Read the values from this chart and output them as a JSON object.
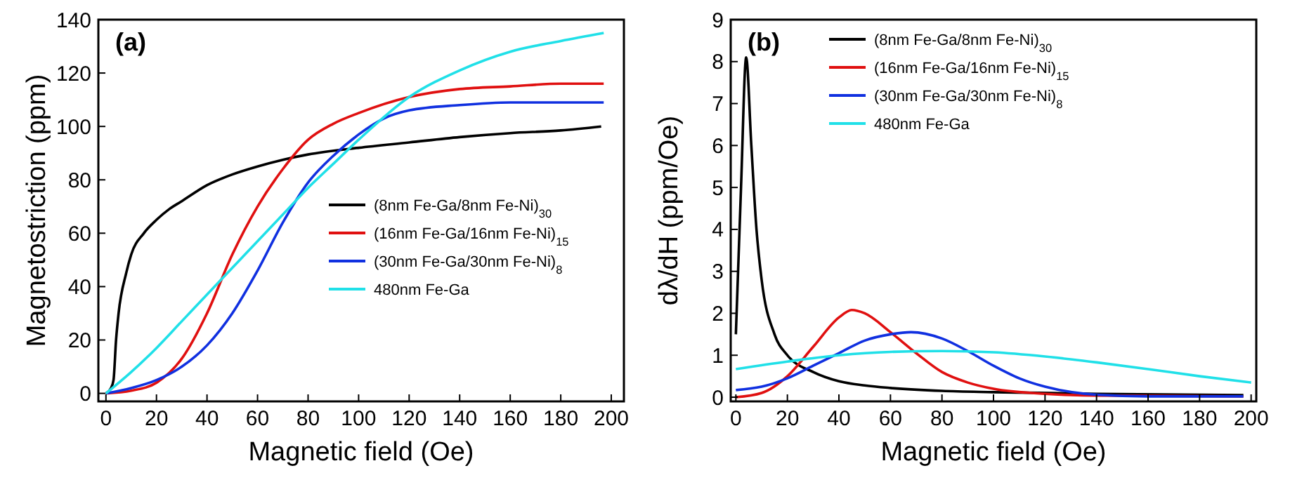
{
  "chart_data": [
    {
      "type": "line",
      "title": "(a)",
      "xlabel": "Magnetic field (Oe)",
      "ylabel": "Magnetostriction (ppm)",
      "xlim": [
        -3,
        205
      ],
      "ylim": [
        -3,
        140
      ],
      "xticks": [
        0,
        20,
        40,
        60,
        80,
        100,
        120,
        140,
        160,
        180,
        200
      ],
      "yticks": [
        0,
        20,
        40,
        60,
        80,
        100,
        120,
        140
      ],
      "legend": "bottom right",
      "grid": false,
      "series": [
        {
          "name": "(8nm Fe-Ga/8nm Fe-Ni)$_{30}$",
          "color": "#000000",
          "x": [
            0,
            2,
            3,
            4,
            5,
            8,
            10,
            15,
            20,
            25,
            30,
            40,
            50,
            60,
            70,
            80,
            100,
            120,
            140,
            160,
            180,
            196
          ],
          "values": [
            0,
            2,
            5,
            20,
            30,
            45,
            52,
            60,
            65,
            69,
            72,
            78,
            82,
            85,
            87.5,
            89.5,
            92,
            94,
            96,
            97.5,
            98.5,
            100
          ]
        },
        {
          "name": "(16nm Fe-Ga/16nm Fe-Ni)$_{15}$",
          "color": "#e01010",
          "x": [
            0,
            10,
            20,
            30,
            40,
            50,
            60,
            70,
            80,
            90,
            100,
            120,
            140,
            160,
            180,
            197
          ],
          "values": [
            0,
            1,
            4,
            13,
            30,
            52,
            70,
            84,
            95,
            101,
            105,
            111,
            114,
            115,
            116,
            116
          ]
        },
        {
          "name": "(30nm Fe-Ga/30nm Fe-Ni)$_{8}$",
          "color": "#1030e0",
          "x": [
            0,
            10,
            20,
            30,
            40,
            50,
            60,
            70,
            80,
            90,
            100,
            110,
            120,
            140,
            160,
            180,
            197
          ],
          "values": [
            0,
            2,
            5,
            10,
            18,
            30,
            46,
            64,
            79,
            89,
            97,
            103,
            106,
            108,
            109,
            109,
            109
          ]
        },
        {
          "name": "480nm Fe-Ga",
          "color": "#20e0e8",
          "x": [
            0,
            10,
            20,
            30,
            40,
            50,
            60,
            70,
            80,
            90,
            100,
            120,
            140,
            160,
            180,
            197
          ],
          "values": [
            0,
            8,
            17,
            27,
            37,
            47,
            57,
            67,
            77,
            86,
            95,
            111,
            121,
            128,
            132,
            135
          ]
        }
      ]
    },
    {
      "type": "line",
      "title": "(b)",
      "xlabel": "Magnetic field (Oe)",
      "ylabel": "dλ/dH (ppm/Oe)",
      "xlim": [
        -2,
        202
      ],
      "ylim": [
        -0.1,
        9
      ],
      "xticks": [
        0,
        20,
        40,
        60,
        80,
        100,
        120,
        140,
        160,
        180,
        200
      ],
      "yticks": [
        0,
        1,
        2,
        3,
        4,
        5,
        6,
        7,
        8,
        9
      ],
      "legend": "top",
      "grid": false,
      "series": [
        {
          "name": "(8nm Fe-Ga/8nm Fe-Ni)$_{30}$",
          "color": "#000000",
          "x": [
            0,
            2,
            4,
            6,
            8,
            10,
            15,
            20,
            30,
            40,
            50,
            60,
            80,
            100,
            140,
            197
          ],
          "values": [
            1.5,
            5,
            8.1,
            6,
            4,
            2.8,
            1.5,
            1,
            0.6,
            0.38,
            0.28,
            0.22,
            0.15,
            0.12,
            0.08,
            0.05
          ]
        },
        {
          "name": "(16nm Fe-Ga/16nm Fe-Ni)$_{15}$",
          "color": "#e01010",
          "x": [
            0,
            10,
            20,
            30,
            40,
            45,
            50,
            60,
            70,
            80,
            90,
            100,
            120,
            140,
            197
          ],
          "values": [
            0,
            0.1,
            0.5,
            1.2,
            1.9,
            2.08,
            2,
            1.55,
            1.05,
            0.6,
            0.35,
            0.2,
            0.08,
            0.04,
            0.02
          ]
        },
        {
          "name": "(30nm Fe-Ga/30nm Fe-Ni)$_{8}$",
          "color": "#1030e0",
          "x": [
            0,
            10,
            20,
            30,
            40,
            50,
            60,
            68,
            80,
            90,
            100,
            110,
            120,
            140,
            160,
            197
          ],
          "values": [
            0.17,
            0.25,
            0.45,
            0.75,
            1.05,
            1.35,
            1.5,
            1.55,
            1.4,
            1.1,
            0.75,
            0.45,
            0.25,
            0.06,
            0.02,
            0.02
          ]
        },
        {
          "name": "480nm Fe-Ga",
          "color": "#20e0e8",
          "x": [
            0,
            20,
            40,
            60,
            80,
            100,
            120,
            140,
            160,
            180,
            200
          ],
          "values": [
            0.67,
            0.85,
            1,
            1.08,
            1.1,
            1.07,
            0.97,
            0.83,
            0.67,
            0.5,
            0.35
          ]
        }
      ]
    }
  ]
}
